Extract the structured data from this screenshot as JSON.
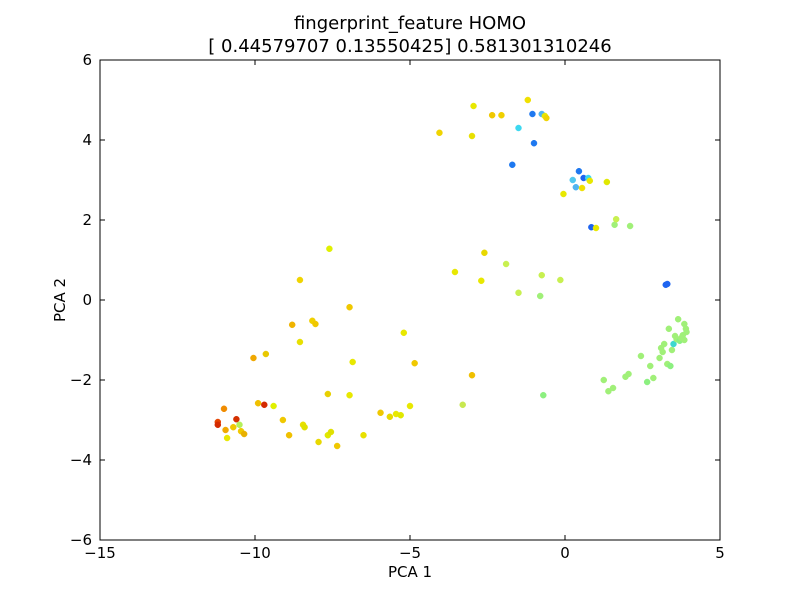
{
  "chart_data": {
    "type": "scatter",
    "title": "fingerprint_feature HOMO",
    "subtitle": "[ 0.44579707  0.13550425] 0.581301310246",
    "xlabel": "PCA 1",
    "ylabel": "PCA 2",
    "xlim": [
      -15,
      5
    ],
    "ylim": [
      -6,
      6
    ],
    "xticks": [
      -15,
      -10,
      -5,
      0,
      5
    ],
    "yticks": [
      -6,
      -4,
      -2,
      0,
      2,
      4,
      6
    ],
    "grid": false,
    "legend": "none",
    "colormap": "jet",
    "points": [
      {
        "x": -11.2,
        "y": -3.05,
        "color": "#e64400"
      },
      {
        "x": -11.2,
        "y": -3.12,
        "color": "#d42a00"
      },
      {
        "x": -11.0,
        "y": -2.72,
        "color": "#f08c00"
      },
      {
        "x": -10.95,
        "y": -3.25,
        "color": "#f0a800"
      },
      {
        "x": -10.9,
        "y": -3.45,
        "color": "#e8e800"
      },
      {
        "x": -10.7,
        "y": -3.18,
        "color": "#f0c800"
      },
      {
        "x": -10.6,
        "y": -2.98,
        "color": "#d43000"
      },
      {
        "x": -10.5,
        "y": -3.12,
        "color": "#b4f05a"
      },
      {
        "x": -10.45,
        "y": -3.28,
        "color": "#f0c800"
      },
      {
        "x": -10.35,
        "y": -3.35,
        "color": "#e8b000"
      },
      {
        "x": -10.05,
        "y": -1.45,
        "color": "#f0a800"
      },
      {
        "x": -9.9,
        "y": -2.58,
        "color": "#f0c000"
      },
      {
        "x": -9.7,
        "y": -2.62,
        "color": "#d42a00"
      },
      {
        "x": -9.65,
        "y": -1.35,
        "color": "#e8c800"
      },
      {
        "x": -9.4,
        "y": -2.65,
        "color": "#e0f000"
      },
      {
        "x": -9.1,
        "y": -3.0,
        "color": "#f0c800"
      },
      {
        "x": -8.9,
        "y": -3.38,
        "color": "#f0c000"
      },
      {
        "x": -8.8,
        "y": -0.62,
        "color": "#f0b400"
      },
      {
        "x": -8.55,
        "y": -1.05,
        "color": "#e8e000"
      },
      {
        "x": -8.55,
        "y": 0.5,
        "color": "#f0d400"
      },
      {
        "x": -8.45,
        "y": -3.12,
        "color": "#e8e000"
      },
      {
        "x": -8.4,
        "y": -3.18,
        "color": "#e0e000"
      },
      {
        "x": -8.15,
        "y": -0.52,
        "color": "#f0d000"
      },
      {
        "x": -8.05,
        "y": -0.6,
        "color": "#f0c800"
      },
      {
        "x": -7.95,
        "y": -3.55,
        "color": "#e8d800"
      },
      {
        "x": -7.65,
        "y": -2.35,
        "color": "#e8d000"
      },
      {
        "x": -7.65,
        "y": -3.38,
        "color": "#e0e800"
      },
      {
        "x": -7.6,
        "y": 1.28,
        "color": "#e0f000"
      },
      {
        "x": -7.55,
        "y": -3.3,
        "color": "#e0e000"
      },
      {
        "x": -7.35,
        "y": -3.65,
        "color": "#f0c800"
      },
      {
        "x": -6.95,
        "y": -2.38,
        "color": "#e8e800"
      },
      {
        "x": -6.95,
        "y": -0.18,
        "color": "#f0c800"
      },
      {
        "x": -6.85,
        "y": -1.55,
        "color": "#e8e800"
      },
      {
        "x": -6.5,
        "y": -3.38,
        "color": "#e8e000"
      },
      {
        "x": -5.95,
        "y": -2.82,
        "color": "#f0c800"
      },
      {
        "x": -5.65,
        "y": -2.92,
        "color": "#e8d800"
      },
      {
        "x": -5.45,
        "y": -2.85,
        "color": "#e8e800"
      },
      {
        "x": -5.3,
        "y": -2.88,
        "color": "#e0e800"
      },
      {
        "x": -5.2,
        "y": -0.82,
        "color": "#e8e800"
      },
      {
        "x": -5.0,
        "y": -2.65,
        "color": "#e8e800"
      },
      {
        "x": -4.85,
        "y": -1.58,
        "color": "#f0c800"
      },
      {
        "x": -4.05,
        "y": 4.18,
        "color": "#f0d400"
      },
      {
        "x": -3.55,
        "y": 0.7,
        "color": "#e8e800"
      },
      {
        "x": -3.3,
        "y": -2.62,
        "color": "#c8e850"
      },
      {
        "x": -3.0,
        "y": -1.88,
        "color": "#f0c000"
      },
      {
        "x": -3.0,
        "y": 4.1,
        "color": "#e8e000"
      },
      {
        "x": -2.95,
        "y": 4.85,
        "color": "#e8e800"
      },
      {
        "x": -2.7,
        "y": 0.48,
        "color": "#e8e800"
      },
      {
        "x": -2.6,
        "y": 1.18,
        "color": "#e8d800"
      },
      {
        "x": -2.35,
        "y": 4.62,
        "color": "#f0c800"
      },
      {
        "x": -2.05,
        "y": 4.62,
        "color": "#f0d000"
      },
      {
        "x": -1.9,
        "y": 0.9,
        "color": "#c8f050"
      },
      {
        "x": -1.7,
        "y": 3.38,
        "color": "#1e78f0"
      },
      {
        "x": -1.5,
        "y": 4.3,
        "color": "#3cd8f0"
      },
      {
        "x": -1.5,
        "y": 0.18,
        "color": "#c8f050"
      },
      {
        "x": -1.2,
        "y": 5.0,
        "color": "#f0e000"
      },
      {
        "x": -1.05,
        "y": 4.65,
        "color": "#1e78f0"
      },
      {
        "x": -1.0,
        "y": 3.92,
        "color": "#1e78f0"
      },
      {
        "x": -0.8,
        "y": 0.1,
        "color": "#a0f078"
      },
      {
        "x": -0.75,
        "y": 0.62,
        "color": "#c8f050"
      },
      {
        "x": -0.75,
        "y": 4.65,
        "color": "#50b4f0"
      },
      {
        "x": -0.7,
        "y": -2.38,
        "color": "#8cf080"
      },
      {
        "x": -0.65,
        "y": 4.6,
        "color": "#e8e800"
      },
      {
        "x": -0.6,
        "y": 4.55,
        "color": "#f0d400"
      },
      {
        "x": -0.15,
        "y": 0.5,
        "color": "#c8f050"
      },
      {
        "x": -0.05,
        "y": 2.65,
        "color": "#e8e800"
      },
      {
        "x": 0.25,
        "y": 3.0,
        "color": "#50c8f0"
      },
      {
        "x": 0.35,
        "y": 2.82,
        "color": "#50b4f0"
      },
      {
        "x": 0.45,
        "y": 3.22,
        "color": "#1e78f0"
      },
      {
        "x": 0.55,
        "y": 2.8,
        "color": "#f0e000"
      },
      {
        "x": 0.6,
        "y": 3.05,
        "color": "#1e64f0"
      },
      {
        "x": 0.75,
        "y": 3.05,
        "color": "#3cd8f0"
      },
      {
        "x": 0.8,
        "y": 2.98,
        "color": "#e8e800"
      },
      {
        "x": 0.85,
        "y": 1.82,
        "color": "#1e64f0"
      },
      {
        "x": 1.0,
        "y": 1.8,
        "color": "#e8e800"
      },
      {
        "x": 1.25,
        "y": -2.0,
        "color": "#a0f078"
      },
      {
        "x": 1.35,
        "y": 2.95,
        "color": "#e0e800"
      },
      {
        "x": 1.4,
        "y": -2.28,
        "color": "#a0f078"
      },
      {
        "x": 1.55,
        "y": -2.2,
        "color": "#a0f078"
      },
      {
        "x": 1.6,
        "y": 1.88,
        "color": "#a0f078"
      },
      {
        "x": 1.65,
        "y": 2.02,
        "color": "#c8f050"
      },
      {
        "x": 1.95,
        "y": -1.92,
        "color": "#a0f078"
      },
      {
        "x": 2.05,
        "y": -1.85,
        "color": "#a0f078"
      },
      {
        "x": 2.1,
        "y": 1.85,
        "color": "#a0f078"
      },
      {
        "x": 2.45,
        "y": -1.4,
        "color": "#a0f078"
      },
      {
        "x": 2.65,
        "y": -2.05,
        "color": "#8cf080"
      },
      {
        "x": 2.75,
        "y": -1.65,
        "color": "#a0f078"
      },
      {
        "x": 2.85,
        "y": -1.95,
        "color": "#a0f078"
      },
      {
        "x": 3.05,
        "y": -1.45,
        "color": "#a0f078"
      },
      {
        "x": 3.1,
        "y": -1.2,
        "color": "#a0f078"
      },
      {
        "x": 3.15,
        "y": -1.3,
        "color": "#a0f078"
      },
      {
        "x": 3.2,
        "y": -1.1,
        "color": "#a0f078"
      },
      {
        "x": 3.25,
        "y": 0.38,
        "color": "#1e64f0"
      },
      {
        "x": 3.3,
        "y": 0.4,
        "color": "#1e64f0"
      },
      {
        "x": 3.3,
        "y": -1.6,
        "color": "#a0f078"
      },
      {
        "x": 3.35,
        "y": -0.72,
        "color": "#a0f078"
      },
      {
        "x": 3.4,
        "y": -1.65,
        "color": "#8cf080"
      },
      {
        "x": 3.45,
        "y": -1.25,
        "color": "#a0f078"
      },
      {
        "x": 3.5,
        "y": -1.1,
        "color": "#3cd8d0"
      },
      {
        "x": 3.55,
        "y": -0.9,
        "color": "#a0f078"
      },
      {
        "x": 3.6,
        "y": -0.98,
        "color": "#a0f078"
      },
      {
        "x": 3.65,
        "y": -0.48,
        "color": "#a0f078"
      },
      {
        "x": 3.7,
        "y": -1.02,
        "color": "#8cf080"
      },
      {
        "x": 3.75,
        "y": -0.95,
        "color": "#a0f078"
      },
      {
        "x": 3.8,
        "y": -0.88,
        "color": "#a0f078"
      },
      {
        "x": 3.85,
        "y": -1.0,
        "color": "#a0f078"
      },
      {
        "x": 3.85,
        "y": -0.6,
        "color": "#a0f078"
      },
      {
        "x": 3.9,
        "y": -0.72,
        "color": "#a0f078"
      },
      {
        "x": 3.92,
        "y": -0.8,
        "color": "#a0f078"
      }
    ]
  }
}
